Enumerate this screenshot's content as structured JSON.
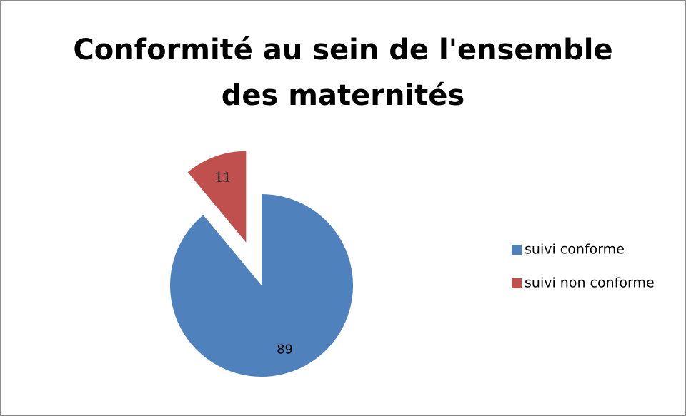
{
  "chart_data": {
    "type": "pie",
    "title": "Conformité au sein de l'ensemble des maternités",
    "categories": [
      "suivi conforme",
      "suivi non conforme"
    ],
    "values": [
      89,
      11
    ],
    "colors": [
      "#4f81bd",
      "#c0504d"
    ],
    "legend": "right"
  }
}
